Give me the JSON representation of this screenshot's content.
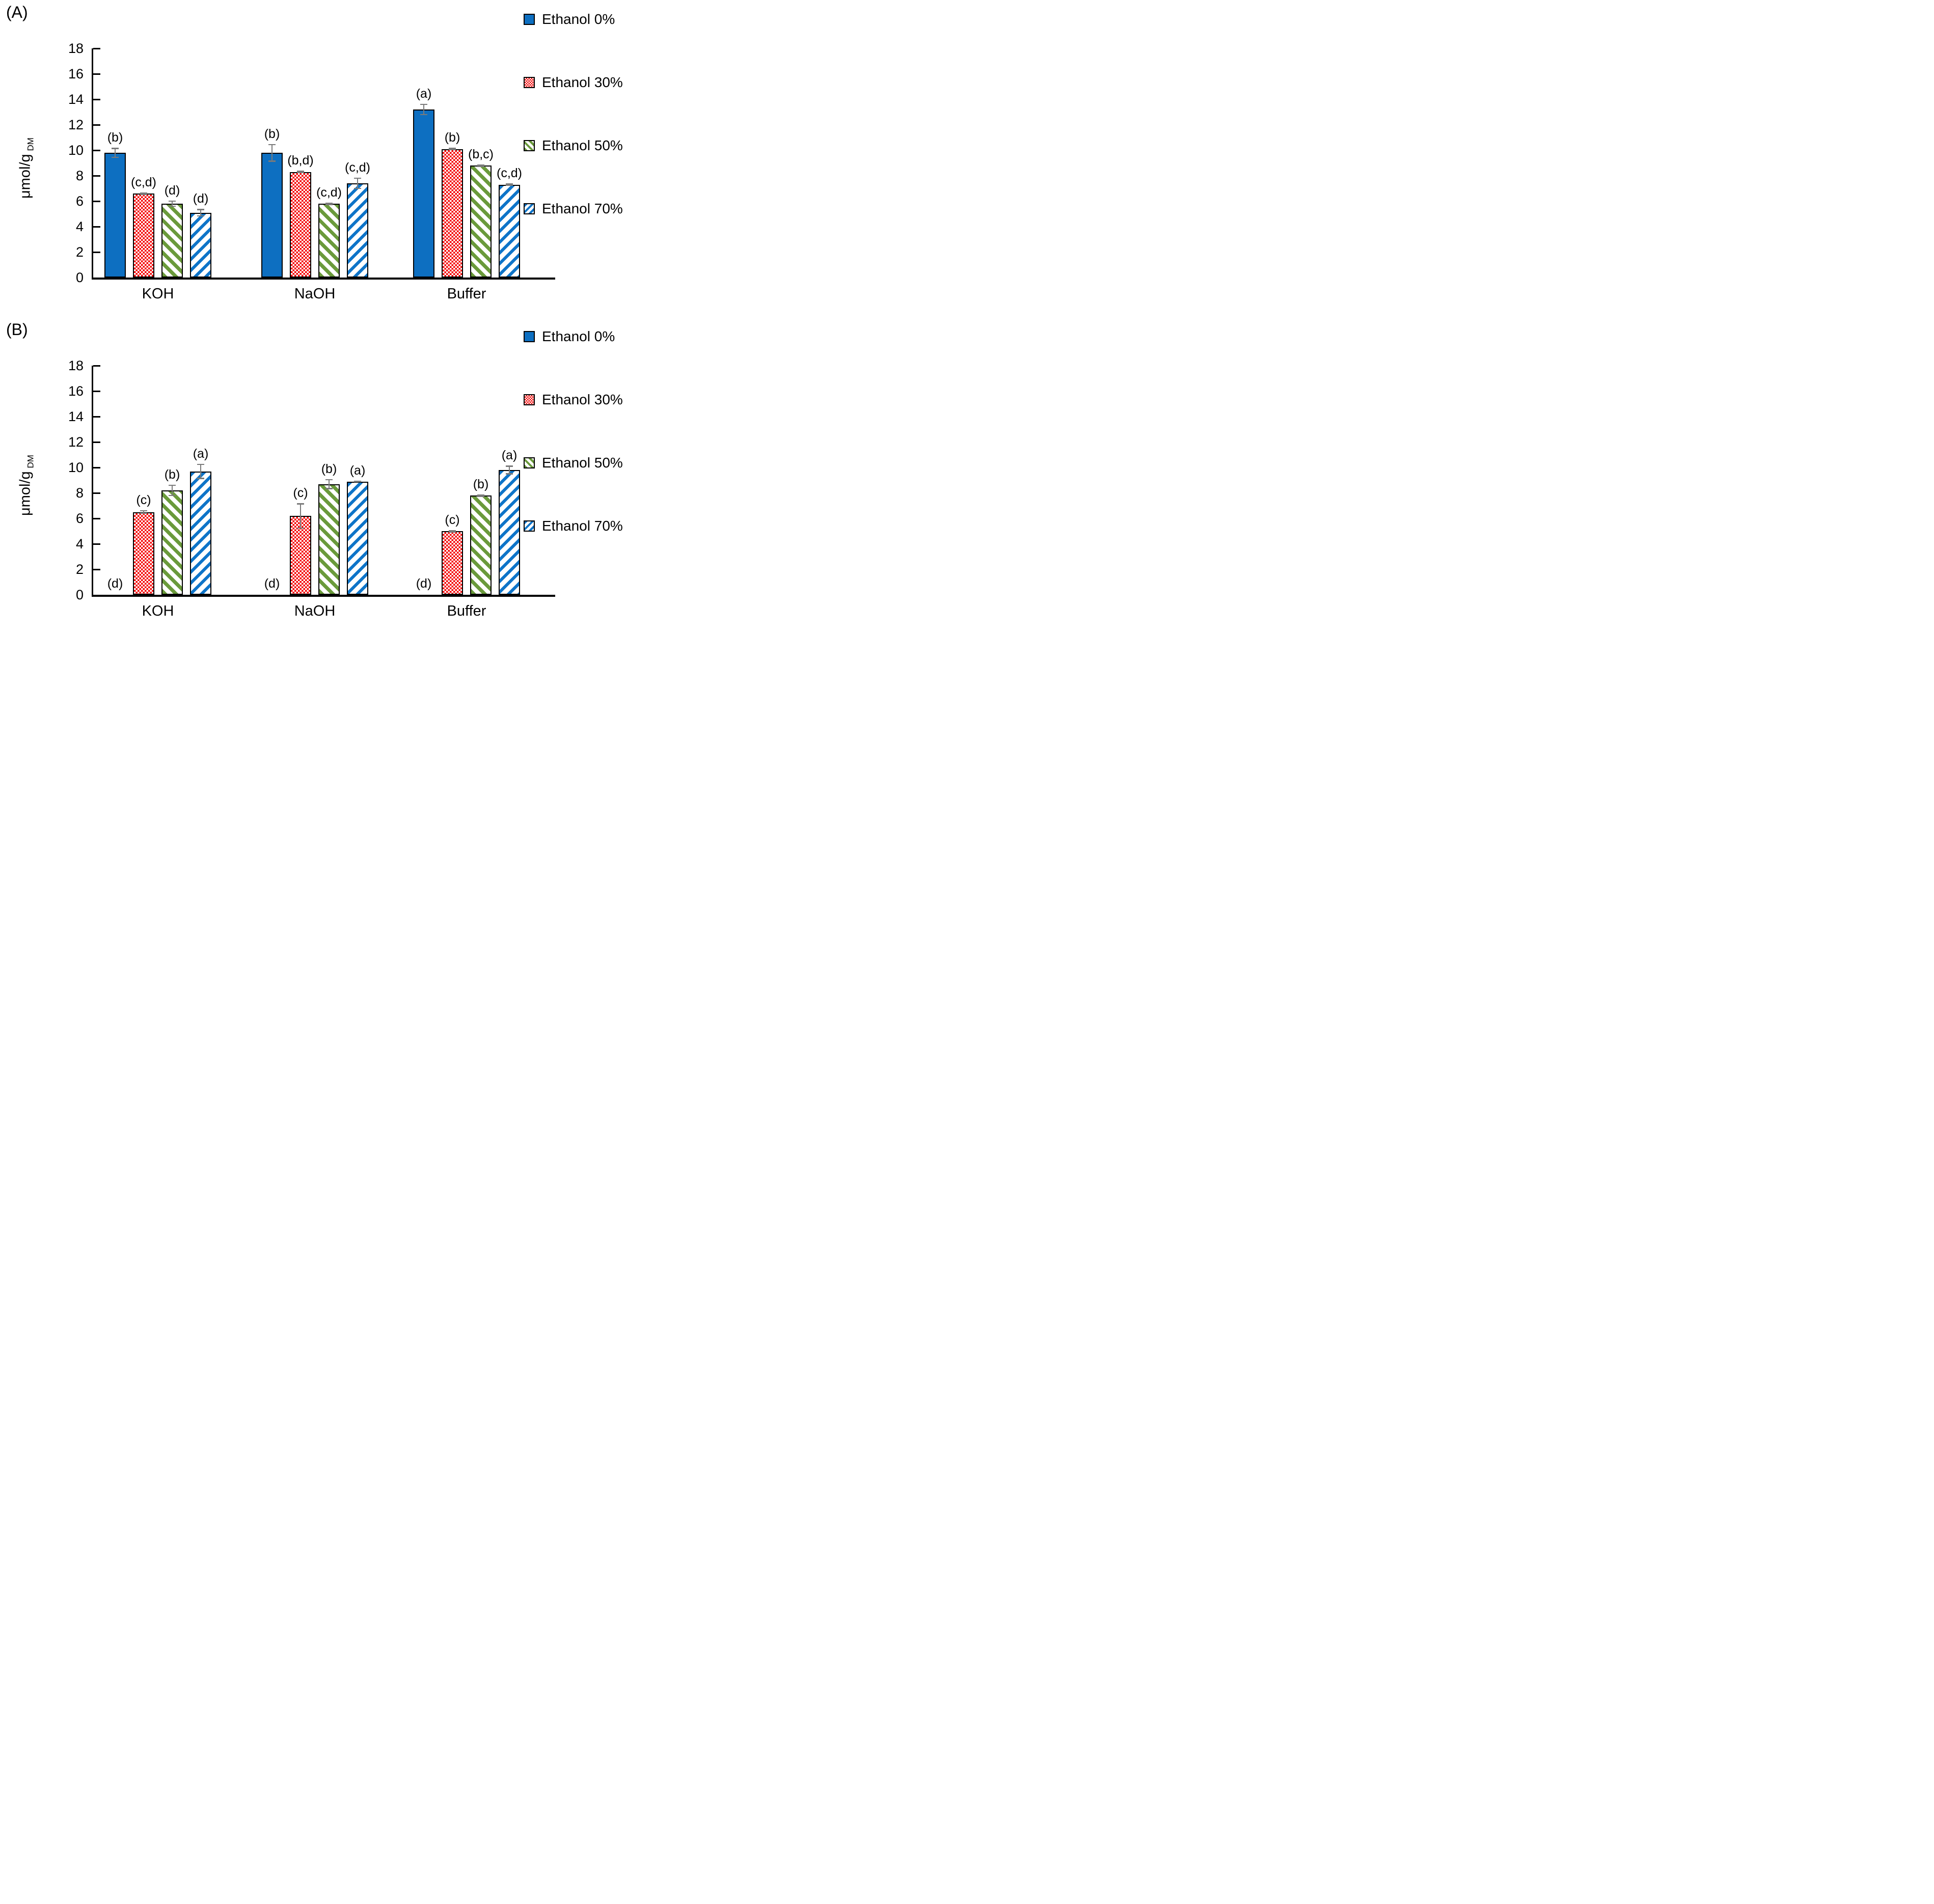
{
  "colors": {
    "bar_blue": "#0d6fc1",
    "bar_red": "#f40000",
    "bar_green": "#6a9a3b",
    "hatch_blue": "#0e74c8",
    "error_bar_gray": "#7a7a7a",
    "axis_black": "#000000"
  },
  "y_axis": {
    "title": "μmol/g",
    "title_sub": "DM",
    "min": 0,
    "max": 18,
    "step": 2
  },
  "legend": {
    "position": "top-right",
    "items": [
      {
        "label": "Ethanol 0%",
        "pattern": "solid-blue"
      },
      {
        "label": "Ethanol 30%",
        "pattern": "red-checker"
      },
      {
        "label": "Ethanol 50%",
        "pattern": "green-hatch"
      },
      {
        "label": "Ethanol 70%",
        "pattern": "blue-hatch"
      }
    ]
  },
  "chart_data": [
    {
      "type": "bar",
      "panel_label": "(A)",
      "title": "",
      "xlabel": "",
      "ylabel": "μmol/g DM",
      "ylim": [
        0,
        18
      ],
      "grid": false,
      "legend_position": "top-right",
      "categories": [
        "KOH",
        "NaOH",
        "Buffer"
      ],
      "series": [
        {
          "name": "Ethanol 0%",
          "pattern": "solid-blue",
          "values": [
            9.8,
            9.8,
            13.2
          ],
          "errors": [
            0.4,
            0.7,
            0.45
          ],
          "annotations": [
            "(b)",
            "(b)",
            "(a)"
          ]
        },
        {
          "name": "Ethanol 30%",
          "pattern": "red-checker",
          "values": [
            6.6,
            8.3,
            10.1
          ],
          "errors": [
            0.1,
            0.1,
            0.1
          ],
          "annotations": [
            "(c,d)",
            "(b,d)",
            "(b)"
          ]
        },
        {
          "name": "Ethanol 50%",
          "pattern": "green-hatch",
          "values": [
            5.8,
            5.8,
            8.8
          ],
          "errors": [
            0.25,
            0.1,
            0.1
          ],
          "annotations": [
            "(d)",
            "(c,d)",
            "(b,c)"
          ]
        },
        {
          "name": "Ethanol 70%",
          "pattern": "blue-hatch",
          "values": [
            5.1,
            7.4,
            7.3
          ],
          "errors": [
            0.3,
            0.45,
            0.1
          ],
          "annotations": [
            "(d)",
            "(c,d)",
            "(c,d)"
          ]
        }
      ]
    },
    {
      "type": "bar",
      "panel_label": "(B)",
      "title": "",
      "xlabel": "",
      "ylabel": "μmol/g DM",
      "ylim": [
        0,
        18
      ],
      "grid": false,
      "legend_position": "top-right",
      "categories": [
        "KOH",
        "NaOH",
        "Buffer"
      ],
      "series": [
        {
          "name": "Ethanol 0%",
          "pattern": "solid-blue",
          "values": [
            0,
            0,
            0
          ],
          "errors": [
            0,
            0,
            0
          ],
          "annotations": [
            "(d)",
            "(d)",
            "(d)"
          ]
        },
        {
          "name": "Ethanol 30%",
          "pattern": "red-checker",
          "values": [
            6.5,
            6.2,
            5.0
          ],
          "errors": [
            0.15,
            1.0,
            0.1
          ],
          "annotations": [
            "(c)",
            "(c)",
            "(c)"
          ]
        },
        {
          "name": "Ethanol 50%",
          "pattern": "green-hatch",
          "values": [
            8.2,
            8.7,
            7.8
          ],
          "errors": [
            0.45,
            0.4,
            0.1
          ],
          "annotations": [
            "(b)",
            "(b)",
            "(b)"
          ]
        },
        {
          "name": "Ethanol 70%",
          "pattern": "blue-hatch",
          "values": [
            9.7,
            8.9,
            9.8
          ],
          "errors": [
            0.6,
            0.05,
            0.35
          ],
          "annotations": [
            "(a)",
            "(a)",
            "(a)"
          ]
        }
      ]
    }
  ]
}
